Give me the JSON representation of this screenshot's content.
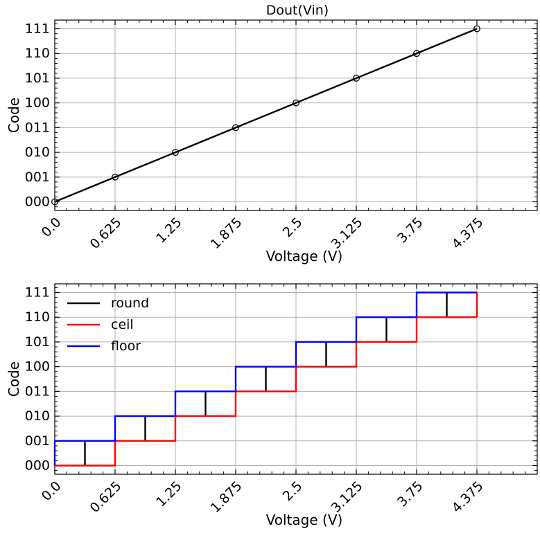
{
  "chart_data": [
    {
      "type": "line",
      "title": "Dout(Vin)",
      "xlabel": "Voltage (V)",
      "ylabel": "Code",
      "xlim": [
        0,
        5
      ],
      "x_ticks": [
        "0.0",
        "0.625",
        "1.25",
        "1.875",
        "2.5",
        "3.125",
        "3.75",
        "4.375"
      ],
      "y_ticks": [
        "000",
        "001",
        "010",
        "011",
        "100",
        "101",
        "110",
        "111"
      ],
      "grid": true,
      "series": [
        {
          "color": "#000000",
          "marker": "open-circle",
          "x": [
            0.0,
            0.625,
            1.25,
            1.875,
            2.5,
            3.125,
            3.75,
            4.375
          ],
          "y": [
            0,
            1,
            2,
            3,
            4,
            5,
            6,
            7
          ]
        }
      ]
    },
    {
      "type": "line",
      "title": "",
      "xlabel": "Voltage (V)",
      "ylabel": "Code",
      "xlim": [
        0,
        5
      ],
      "x_ticks": [
        "0.0",
        "0.625",
        "1.25",
        "1.875",
        "2.5",
        "3.125",
        "3.75",
        "4.375"
      ],
      "y_ticks": [
        "000",
        "001",
        "010",
        "011",
        "100",
        "101",
        "110",
        "111"
      ],
      "grid": true,
      "legend_position": "top-left",
      "series": [
        {
          "name": "round",
          "color": "#000000",
          "style": "vertical-bars",
          "x": [
            0.3125,
            0.9375,
            1.5625,
            2.1875,
            2.8125,
            3.4375,
            4.0625
          ],
          "y_low": [
            0,
            1,
            2,
            3,
            4,
            5,
            6
          ],
          "y_high": [
            1,
            2,
            3,
            4,
            5,
            6,
            7
          ]
        },
        {
          "name": "ceil",
          "color": "#ff0000",
          "style": "step",
          "x": [
            0.0,
            0.625,
            1.25,
            1.875,
            2.5,
            3.125,
            3.75,
            4.375
          ],
          "y": [
            0,
            1,
            2,
            3,
            4,
            5,
            6,
            6
          ]
        },
        {
          "name": "floor",
          "color": "#0000ff",
          "style": "step",
          "x": [
            0.0,
            0.625,
            1.25,
            1.875,
            2.5,
            3.125,
            3.75,
            4.375
          ],
          "y": [
            1,
            2,
            3,
            4,
            5,
            6,
            7,
            7
          ]
        }
      ]
    }
  ]
}
